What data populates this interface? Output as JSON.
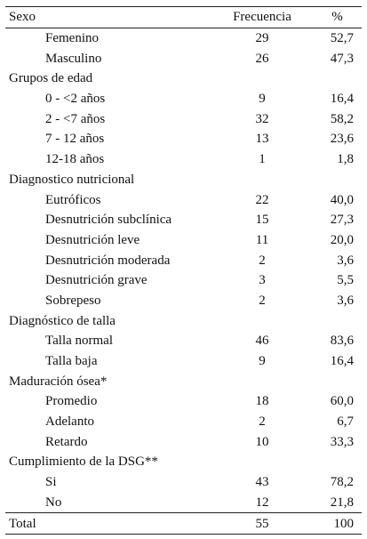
{
  "header": {
    "label": "Sexo",
    "freq": "Frecuencia",
    "pct": "%"
  },
  "rows": [
    {
      "type": "item",
      "label": "Femenino",
      "freq": "29",
      "pct": "52,7"
    },
    {
      "type": "item",
      "label": "Masculino",
      "freq": "26",
      "pct": "47,3"
    },
    {
      "type": "section",
      "label": "Grupos de edad"
    },
    {
      "type": "item",
      "label": "0 - <2 años",
      "freq": "9",
      "pct": "16,4"
    },
    {
      "type": "item",
      "label": "2 - <7 años",
      "freq": "32",
      "pct": "58,2"
    },
    {
      "type": "item",
      "label": "7 - 12 años",
      "freq": "13",
      "pct": "23,6"
    },
    {
      "type": "item",
      "label": "12-18 años",
      "freq": "1",
      "pct": "1,8"
    },
    {
      "type": "section",
      "label": "Diagnostico nutricional"
    },
    {
      "type": "item",
      "label": "Eutróficos",
      "freq": "22",
      "pct": "40,0"
    },
    {
      "type": "item",
      "label": "Desnutrición subclínica",
      "freq": "15",
      "pct": "27,3"
    },
    {
      "type": "item",
      "label": "Desnutrición leve",
      "freq": "11",
      "pct": "20,0"
    },
    {
      "type": "item",
      "label": "Desnutrición moderada",
      "freq": "2",
      "pct": "3,6"
    },
    {
      "type": "item",
      "label": "Desnutrición grave",
      "freq": "3",
      "pct": "5,5"
    },
    {
      "type": "item",
      "label": "Sobrepeso",
      "freq": "2",
      "pct": "3,6"
    },
    {
      "type": "section",
      "label": "Diagnóstico de talla"
    },
    {
      "type": "item",
      "label": "Talla normal",
      "freq": "46",
      "pct": "83,6"
    },
    {
      "type": "item",
      "label": "Talla baja",
      "freq": "9",
      "pct": "16,4"
    },
    {
      "type": "section",
      "label": "Maduración ósea*"
    },
    {
      "type": "item",
      "label": "Promedio",
      "freq": "18",
      "pct": "60,0"
    },
    {
      "type": "item",
      "label": "Adelanto",
      "freq": "2",
      "pct": "6,7"
    },
    {
      "type": "item",
      "label": "Retardo",
      "freq": "10",
      "pct": "33,3"
    },
    {
      "type": "section",
      "label": "Cumplimiento de la DSG**"
    },
    {
      "type": "item",
      "label": "Si",
      "freq": "43",
      "pct": "78,2"
    },
    {
      "type": "item",
      "label": "No",
      "freq": "12",
      "pct": "21,8"
    },
    {
      "type": "total",
      "label": "Total",
      "freq": "55",
      "pct": "100"
    }
  ]
}
